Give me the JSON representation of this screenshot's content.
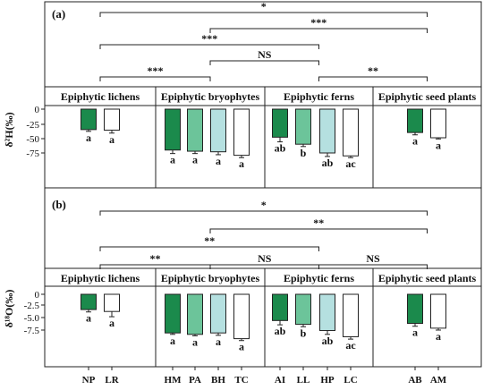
{
  "chart_data": [
    {
      "type": "bar",
      "panel_label": "(a)",
      "ylabel_text": "δ²H(‰)",
      "ylim": [
        -100,
        10
      ],
      "yticks": [
        "0",
        "-25",
        "-50",
        "-75"
      ],
      "grid": false,
      "groups": [
        {
          "name": "Epiphytic lichens",
          "categories": [
            "NP",
            "LR"
          ]
        },
        {
          "name": "Epiphytic bryophytes",
          "categories": [
            "HM",
            "PA",
            "BH",
            "TC"
          ]
        },
        {
          "name": "Epiphytic ferns",
          "categories": [
            "AI",
            "LL",
            "HP",
            "LC"
          ]
        },
        {
          "name": "Epiphytic seed plants",
          "categories": [
            "AB",
            "AM"
          ]
        }
      ],
      "categories": [
        "NP",
        "LR",
        "HM",
        "PA",
        "BH",
        "TC",
        "AI",
        "LL",
        "HP",
        "LC",
        "AB",
        "AM"
      ],
      "values": [
        -35,
        -36,
        -70,
        -72,
        -73,
        -79,
        -48,
        -60,
        -75,
        -80,
        -40,
        -49
      ],
      "errors": [
        3,
        5,
        6,
        4,
        5,
        4,
        8,
        4,
        6,
        3,
        4,
        2
      ],
      "letters": [
        "a",
        "a",
        "a",
        "a",
        "a",
        "a",
        "ab",
        "b",
        "ab",
        "ac",
        "a",
        "a"
      ],
      "colors": [
        "#1b8a4c",
        "#ffffff",
        "#1b8a4c",
        "#6cc49a",
        "#b5e0e0",
        "#ffffff",
        "#1b8a4c",
        "#6cc49a",
        "#b5e0e0",
        "#ffffff",
        "#1b8a4c",
        "#ffffff"
      ],
      "comparisons": [
        {
          "label": "*",
          "from": 0,
          "to": 3,
          "level": 4
        },
        {
          "label": "***",
          "from": 1,
          "to": 3,
          "level": 3
        },
        {
          "label": "***",
          "from": 0,
          "to": 2,
          "level": 2
        },
        {
          "label": "NS",
          "from": 1,
          "to": 2,
          "level": 1
        },
        {
          "label": "***",
          "from": 0,
          "to": 1,
          "level": 0
        },
        {
          "label": "**",
          "from": 2,
          "to": 3,
          "level": 0
        }
      ]
    },
    {
      "type": "bar",
      "panel_label": "(b)",
      "ylabel_text": "δ¹⁸O(‰)",
      "ylim": [
        -10,
        1
      ],
      "yticks": [
        "0",
        "-2.5",
        "-5.0",
        "-7.5"
      ],
      "grid": false,
      "groups": [
        {
          "name": "Epiphytic lichens",
          "categories": [
            "NP",
            "LR"
          ]
        },
        {
          "name": "Epiphytic bryophytes",
          "categories": [
            "HM",
            "PA",
            "BH",
            "TC"
          ]
        },
        {
          "name": "Epiphytic ferns",
          "categories": [
            "AI",
            "LL",
            "HP",
            "LC"
          ]
        },
        {
          "name": "Epiphytic seed plants",
          "categories": [
            "AB",
            "AM"
          ]
        }
      ],
      "categories": [
        "NP",
        "LR",
        "HM",
        "PA",
        "BH",
        "TC",
        "AI",
        "LL",
        "HP",
        "LC",
        "AB",
        "AM"
      ],
      "values": [
        -3.2,
        -3.6,
        -8.1,
        -8.4,
        -8.1,
        -9.3,
        -5.5,
        -6.3,
        -7.6,
        -8.9,
        -6.1,
        -7.1
      ],
      "errors": [
        0.5,
        1.1,
        0.3,
        0.3,
        0.5,
        0.4,
        0.9,
        0.5,
        0.8,
        0.5,
        0.6,
        0.4
      ],
      "letters": [
        "a",
        "a",
        "a",
        "a",
        "a",
        "a",
        "ab",
        "b",
        "ab",
        "ac",
        "a",
        "a"
      ],
      "colors": [
        "#1b8a4c",
        "#ffffff",
        "#1b8a4c",
        "#6cc49a",
        "#b5e0e0",
        "#ffffff",
        "#1b8a4c",
        "#6cc49a",
        "#b5e0e0",
        "#ffffff",
        "#1b8a4c",
        "#ffffff"
      ],
      "comparisons": [
        {
          "label": "*",
          "from": 0,
          "to": 3,
          "level": 3
        },
        {
          "label": "**",
          "from": 1,
          "to": 3,
          "level": 2
        },
        {
          "label": "**",
          "from": 0,
          "to": 2,
          "level": 1
        },
        {
          "label": "**",
          "from": 0,
          "to": 1,
          "level": 0
        },
        {
          "label": "NS",
          "from": 1,
          "to": 2,
          "level": 0
        },
        {
          "label": "NS",
          "from": 2,
          "to": 3,
          "level": 0
        }
      ]
    }
  ],
  "x_axis_labels": [
    "NP",
    "LR",
    "HM",
    "PA",
    "BH",
    "TC",
    "AI",
    "LL",
    "HP",
    "LC",
    "AB",
    "AM"
  ]
}
